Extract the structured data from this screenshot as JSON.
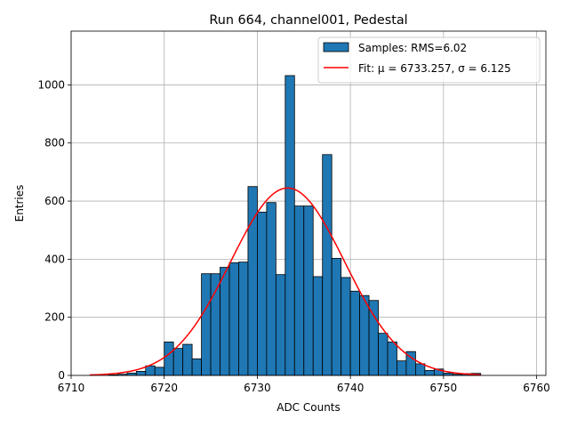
{
  "chart_data": {
    "type": "bar",
    "title": "Run 664, channel001, Pedestal",
    "xlabel": "ADC Counts",
    "ylabel": "Entries",
    "xlim": [
      6710,
      6761
    ],
    "ylim": [
      0,
      1185
    ],
    "xticks": [
      6710,
      6720,
      6730,
      6740,
      6750,
      6760
    ],
    "yticks": [
      0,
      200,
      400,
      600,
      800,
      1000
    ],
    "grid": true,
    "legend_position": "top-right",
    "bar_color": "#1f77b4",
    "fit_color": "#ff0000",
    "series": [
      {
        "name": "Samples: RMS=6.02",
        "kind": "histogram",
        "bins": [
          [
            6714,
            6715,
            2
          ],
          [
            6715,
            6716,
            4
          ],
          [
            6716,
            6717,
            8
          ],
          [
            6717,
            6718,
            14
          ],
          [
            6718,
            6719,
            33
          ],
          [
            6719,
            6720,
            28
          ],
          [
            6720,
            6721,
            115
          ],
          [
            6721,
            6722,
            93
          ],
          [
            6722,
            6723,
            107
          ],
          [
            6723,
            6724,
            57
          ],
          [
            6724,
            6725,
            350
          ],
          [
            6725,
            6726,
            350
          ],
          [
            6726,
            6727,
            372
          ],
          [
            6727,
            6728,
            388
          ],
          [
            6728,
            6729,
            390
          ],
          [
            6729,
            6730,
            650
          ],
          [
            6730,
            6731,
            562
          ],
          [
            6731,
            6732,
            595
          ],
          [
            6732,
            6733,
            347
          ],
          [
            6733,
            6734,
            1032
          ],
          [
            6734,
            6735,
            583
          ],
          [
            6735,
            6736,
            583
          ],
          [
            6736,
            6737,
            340
          ],
          [
            6737,
            6738,
            760
          ],
          [
            6738,
            6739,
            403
          ],
          [
            6739,
            6740,
            337
          ],
          [
            6740,
            6741,
            290
          ],
          [
            6741,
            6742,
            275
          ],
          [
            6742,
            6743,
            258
          ],
          [
            6743,
            6744,
            145
          ],
          [
            6744,
            6745,
            115
          ],
          [
            6745,
            6746,
            50
          ],
          [
            6746,
            6747,
            82
          ],
          [
            6747,
            6748,
            40
          ],
          [
            6748,
            6749,
            17
          ],
          [
            6749,
            6750,
            22
          ],
          [
            6750,
            6751,
            8
          ],
          [
            6751,
            6752,
            4
          ],
          [
            6752,
            6753,
            6
          ],
          [
            6753,
            6754,
            7
          ]
        ]
      },
      {
        "name": "Fit: μ = 6733.257, σ = 6.125",
        "kind": "gaussian",
        "mu": 6733.257,
        "sigma": 6.125,
        "amplitude": 645,
        "x_range": [
          6712,
          6754
        ]
      }
    ]
  }
}
